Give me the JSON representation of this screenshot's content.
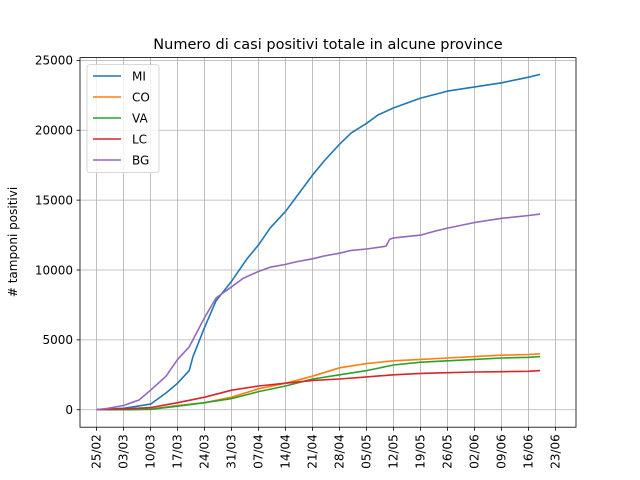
{
  "chart_data": {
    "type": "line",
    "title": "Numero di casi positivi totale in alcune province",
    "xlabel": "",
    "ylabel": "# tamponi positivi",
    "x_ticks": [
      "25/02",
      "03/03",
      "10/03",
      "17/03",
      "24/03",
      "31/03",
      "07/04",
      "14/04",
      "21/04",
      "28/04",
      "05/05",
      "12/05",
      "19/05",
      "26/05",
      "02/06",
      "09/06",
      "16/06",
      "23/06"
    ],
    "start_date": "25/02",
    "ylim": [
      -1250,
      25200
    ],
    "y_ticks": [
      0,
      5000,
      10000,
      15000,
      20000,
      25000
    ],
    "grid": true,
    "legend": "top-left",
    "series": [
      {
        "name": "MI",
        "color": "#1f77b4",
        "x": [
          "25/02",
          "03/03",
          "10/03",
          "14/03",
          "17/03",
          "20/03",
          "21/03",
          "24/03",
          "27/03",
          "31/03",
          "04/04",
          "07/04",
          "10/04",
          "14/04",
          "17/04",
          "21/04",
          "24/04",
          "28/04",
          "01/05",
          "05/05",
          "08/05",
          "12/05",
          "19/05",
          "26/05",
          "02/06",
          "09/06",
          "16/06",
          "19/06"
        ],
        "values": [
          0,
          100,
          400,
          1200,
          1900,
          2800,
          3800,
          5900,
          7800,
          9200,
          10800,
          11800,
          13000,
          14200,
          15300,
          16800,
          17800,
          19000,
          19800,
          20500,
          21100,
          21600,
          22300,
          22800,
          23100,
          23400,
          23800,
          24000
        ]
      },
      {
        "name": "CO",
        "color": "#ff7f0e",
        "x": [
          "25/02",
          "03/03",
          "10/03",
          "17/03",
          "24/03",
          "31/03",
          "07/04",
          "14/04",
          "21/04",
          "28/04",
          "05/05",
          "12/05",
          "19/05",
          "26/05",
          "02/06",
          "09/06",
          "16/06",
          "19/06"
        ],
        "values": [
          0,
          0,
          50,
          300,
          500,
          900,
          1500,
          1900,
          2400,
          3000,
          3300,
          3500,
          3600,
          3700,
          3800,
          3900,
          3950,
          4000
        ]
      },
      {
        "name": "VA",
        "color": "#2ca02c",
        "x": [
          "25/02",
          "03/03",
          "10/03",
          "17/03",
          "24/03",
          "31/03",
          "07/04",
          "14/04",
          "21/04",
          "28/04",
          "05/05",
          "12/05",
          "19/05",
          "26/05",
          "02/06",
          "09/06",
          "16/06",
          "19/06"
        ],
        "values": [
          0,
          0,
          30,
          250,
          500,
          800,
          1300,
          1700,
          2200,
          2500,
          2800,
          3200,
          3400,
          3500,
          3600,
          3700,
          3750,
          3800
        ]
      },
      {
        "name": "LC",
        "color": "#d62728",
        "x": [
          "25/02",
          "03/03",
          "10/03",
          "17/03",
          "24/03",
          "31/03",
          "07/04",
          "14/04",
          "21/04",
          "28/04",
          "05/05",
          "12/05",
          "19/05",
          "26/05",
          "02/06",
          "09/06",
          "16/06",
          "19/06"
        ],
        "values": [
          0,
          50,
          150,
          500,
          900,
          1400,
          1700,
          1900,
          2100,
          2200,
          2350,
          2500,
          2600,
          2650,
          2700,
          2720,
          2750,
          2800
        ]
      },
      {
        "name": "BG",
        "color": "#9467bd",
        "x": [
          "25/02",
          "28/02",
          "03/03",
          "07/03",
          "10/03",
          "14/03",
          "17/03",
          "20/03",
          "24/03",
          "27/03",
          "31/03",
          "03/04",
          "07/04",
          "10/04",
          "14/04",
          "17/04",
          "21/04",
          "24/04",
          "28/04",
          "01/05",
          "05/05",
          "10/05",
          "11/05",
          "12/05",
          "19/05",
          "23/05",
          "26/05",
          "02/06",
          "09/06",
          "16/06",
          "19/06"
        ],
        "values": [
          0,
          100,
          300,
          700,
          1400,
          2400,
          3600,
          4500,
          6600,
          8000,
          8800,
          9400,
          9900,
          10200,
          10400,
          10600,
          10800,
          11000,
          11200,
          11400,
          11500,
          11700,
          12200,
          12300,
          12500,
          12800,
          13000,
          13400,
          13700,
          13900,
          14000
        ]
      }
    ]
  }
}
